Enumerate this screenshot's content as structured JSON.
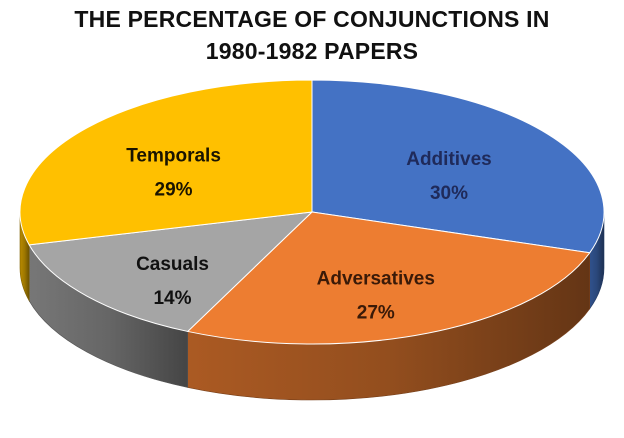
{
  "chart_data": {
    "type": "pie",
    "title_lines": [
      "THE PERCENTAGE OF CONJUNCTIONS IN",
      "1980-1982 PAPERS"
    ],
    "style": "3d",
    "slices": [
      {
        "label": "Additives",
        "value": 30,
        "value_label": "30%",
        "color": "#4472C4",
        "label_color": "#1F2A5A"
      },
      {
        "label": "Adversatives",
        "value": 27,
        "value_label": "27%",
        "color": "#ED7D31",
        "label_color": "#3A1A08"
      },
      {
        "label": "Casuals",
        "value": 14,
        "value_label": "14%",
        "color": "#A5A5A5",
        "label_color": "#111111"
      },
      {
        "label": "Temporals",
        "value": 29,
        "value_label": "29%",
        "color": "#FFC000",
        "label_color": "#1A1400"
      }
    ]
  }
}
